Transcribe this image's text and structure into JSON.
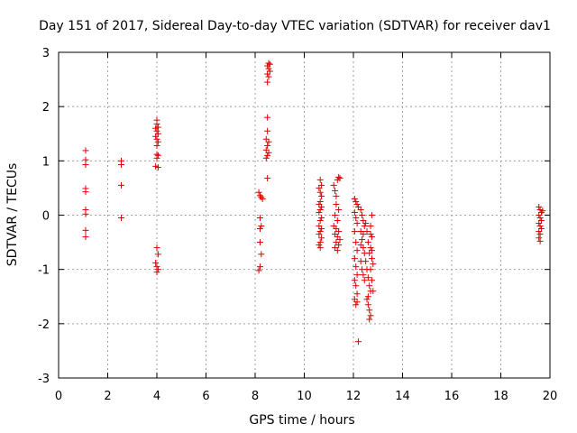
{
  "chart_data": {
    "type": "scatter",
    "title": "Day 151 of 2017, Sidereal Day-to-day VTEC variation (SDTVAR) for receiver dav1",
    "xlabel": "GPS time / hours",
    "ylabel": "SDTVAR / TECUs",
    "xlim": [
      0,
      20
    ],
    "ylim": [
      -3,
      3
    ],
    "xticks": [
      "0",
      "2",
      "4",
      "6",
      "8",
      "10",
      "12",
      "14",
      "16",
      "18",
      "20"
    ],
    "yticks": [
      "-3",
      "-2",
      "-1",
      "0",
      "1",
      "2",
      "3"
    ],
    "grid": true,
    "marker": "+",
    "color": "#e00000",
    "series": [
      {
        "name": "SDTVAR",
        "points": [
          [
            1.1,
            1.19
          ],
          [
            1.1,
            1.02
          ],
          [
            1.1,
            0.93
          ],
          [
            1.1,
            0.49
          ],
          [
            1.1,
            0.43
          ],
          [
            1.1,
            0.1
          ],
          [
            1.1,
            0.02
          ],
          [
            1.1,
            -0.28
          ],
          [
            1.1,
            -0.4
          ],
          [
            2.55,
            1.0
          ],
          [
            2.55,
            0.93
          ],
          [
            2.55,
            0.55
          ],
          [
            2.55,
            -0.05
          ],
          [
            4.0,
            1.75
          ],
          [
            4.0,
            1.68
          ],
          [
            3.95,
            1.6
          ],
          [
            4.05,
            1.62
          ],
          [
            4.0,
            1.55
          ],
          [
            4.05,
            1.5
          ],
          [
            3.95,
            1.45
          ],
          [
            4.0,
            1.4
          ],
          [
            4.05,
            1.35
          ],
          [
            4.0,
            1.28
          ],
          [
            4.0,
            1.12
          ],
          [
            4.05,
            1.1
          ],
          [
            4.0,
            1.05
          ],
          [
            3.95,
            0.9
          ],
          [
            4.05,
            0.88
          ],
          [
            4.0,
            -0.6
          ],
          [
            4.05,
            -0.72
          ],
          [
            3.95,
            -0.88
          ],
          [
            4.0,
            -0.95
          ],
          [
            4.05,
            -1.0
          ],
          [
            4.0,
            -1.05
          ],
          [
            8.15,
            0.42
          ],
          [
            8.2,
            0.36
          ],
          [
            8.25,
            0.33
          ],
          [
            8.3,
            0.3
          ],
          [
            8.2,
            -0.05
          ],
          [
            8.25,
            -0.2
          ],
          [
            8.2,
            -0.25
          ],
          [
            8.2,
            -0.5
          ],
          [
            8.25,
            -0.72
          ],
          [
            8.2,
            -0.95
          ],
          [
            8.15,
            -1.02
          ],
          [
            8.5,
            1.8
          ],
          [
            8.5,
            1.55
          ],
          [
            8.45,
            1.4
          ],
          [
            8.55,
            1.35
          ],
          [
            8.5,
            1.28
          ],
          [
            8.45,
            1.2
          ],
          [
            8.55,
            1.15
          ],
          [
            8.5,
            1.1
          ],
          [
            8.45,
            1.05
          ],
          [
            8.5,
            0.68
          ],
          [
            8.55,
            2.8
          ],
          [
            8.6,
            2.78
          ],
          [
            8.5,
            2.75
          ],
          [
            8.55,
            2.7
          ],
          [
            8.6,
            2.65
          ],
          [
            8.5,
            2.6
          ],
          [
            8.55,
            2.55
          ],
          [
            8.5,
            2.45
          ],
          [
            10.65,
            0.65
          ],
          [
            10.7,
            0.55
          ],
          [
            10.6,
            0.5
          ],
          [
            10.65,
            0.42
          ],
          [
            10.7,
            0.35
          ],
          [
            10.65,
            0.25
          ],
          [
            10.6,
            0.2
          ],
          [
            10.7,
            0.15
          ],
          [
            10.65,
            0.1
          ],
          [
            10.6,
            0.05
          ],
          [
            10.7,
            -0.05
          ],
          [
            10.65,
            -0.1
          ],
          [
            10.6,
            -0.2
          ],
          [
            10.7,
            -0.25
          ],
          [
            10.65,
            -0.3
          ],
          [
            10.6,
            -0.35
          ],
          [
            10.7,
            -0.42
          ],
          [
            10.65,
            -0.5
          ],
          [
            10.6,
            -0.55
          ],
          [
            10.65,
            -0.6
          ],
          [
            11.2,
            0.55
          ],
          [
            11.25,
            0.45
          ],
          [
            11.3,
            0.35
          ],
          [
            11.35,
            0.65
          ],
          [
            11.4,
            0.7
          ],
          [
            11.45,
            0.68
          ],
          [
            11.3,
            0.2
          ],
          [
            11.4,
            0.1
          ],
          [
            11.25,
            0.0
          ],
          [
            11.35,
            -0.1
          ],
          [
            11.2,
            -0.2
          ],
          [
            11.3,
            -0.25
          ],
          [
            11.4,
            -0.3
          ],
          [
            11.25,
            -0.35
          ],
          [
            11.35,
            -0.4
          ],
          [
            11.45,
            -0.45
          ],
          [
            11.3,
            -0.5
          ],
          [
            11.4,
            -0.55
          ],
          [
            11.25,
            -0.6
          ],
          [
            11.35,
            -0.65
          ],
          [
            12.05,
            0.3
          ],
          [
            12.1,
            0.25
          ],
          [
            12.15,
            0.2
          ],
          [
            12.2,
            0.15
          ],
          [
            12.05,
            0.05
          ],
          [
            12.1,
            -0.05
          ],
          [
            12.15,
            -0.15
          ],
          [
            12.05,
            -0.3
          ],
          [
            12.1,
            -0.5
          ],
          [
            12.15,
            -0.65
          ],
          [
            12.05,
            -0.8
          ],
          [
            12.1,
            -0.95
          ],
          [
            12.15,
            -1.1
          ],
          [
            12.05,
            -1.2
          ],
          [
            12.1,
            -1.3
          ],
          [
            12.15,
            -1.45
          ],
          [
            12.05,
            -1.55
          ],
          [
            12.1,
            -1.65
          ],
          [
            12.15,
            -1.6
          ],
          [
            12.2,
            -2.33
          ],
          [
            12.3,
            0.1
          ],
          [
            12.35,
            0.0
          ],
          [
            12.4,
            -0.1
          ],
          [
            12.45,
            -0.2
          ],
          [
            12.3,
            -0.3
          ],
          [
            12.35,
            -0.45
          ],
          [
            12.4,
            -0.6
          ],
          [
            12.45,
            -0.7
          ],
          [
            12.3,
            -0.85
          ],
          [
            12.35,
            -1.0
          ],
          [
            12.4,
            -1.1
          ],
          [
            12.45,
            -1.2
          ],
          [
            12.3,
            -0.55
          ],
          [
            12.4,
            -0.35
          ],
          [
            12.5,
            -0.15
          ],
          [
            12.55,
            -0.3
          ],
          [
            12.6,
            -0.5
          ],
          [
            12.65,
            -0.7
          ],
          [
            12.5,
            -0.85
          ],
          [
            12.55,
            -1.0
          ],
          [
            12.6,
            -1.15
          ],
          [
            12.65,
            -1.3
          ],
          [
            12.7,
            -1.4
          ],
          [
            12.55,
            -1.55
          ],
          [
            12.6,
            -1.65
          ],
          [
            12.65,
            -1.75
          ],
          [
            12.7,
            -1.85
          ],
          [
            12.65,
            -1.92
          ],
          [
            12.6,
            -1.5
          ],
          [
            12.75,
            0.0
          ],
          [
            12.7,
            -0.2
          ],
          [
            12.75,
            -0.4
          ],
          [
            12.7,
            -0.6
          ],
          [
            12.75,
            -0.8
          ],
          [
            12.7,
            -1.0
          ],
          [
            12.75,
            -1.2
          ],
          [
            12.7,
            -0.35
          ],
          [
            12.75,
            -0.65
          ],
          [
            12.8,
            -0.9
          ],
          [
            12.8,
            -1.4
          ],
          [
            19.55,
            0.15
          ],
          [
            19.6,
            0.1
          ],
          [
            19.65,
            0.05
          ],
          [
            19.7,
            0.08
          ],
          [
            19.55,
            0.0
          ],
          [
            19.6,
            -0.05
          ],
          [
            19.65,
            -0.1
          ],
          [
            19.55,
            -0.15
          ],
          [
            19.6,
            -0.2
          ],
          [
            19.65,
            -0.25
          ],
          [
            19.55,
            -0.3
          ],
          [
            19.6,
            -0.35
          ],
          [
            19.55,
            -0.42
          ],
          [
            19.6,
            -0.48
          ]
        ]
      }
    ]
  }
}
